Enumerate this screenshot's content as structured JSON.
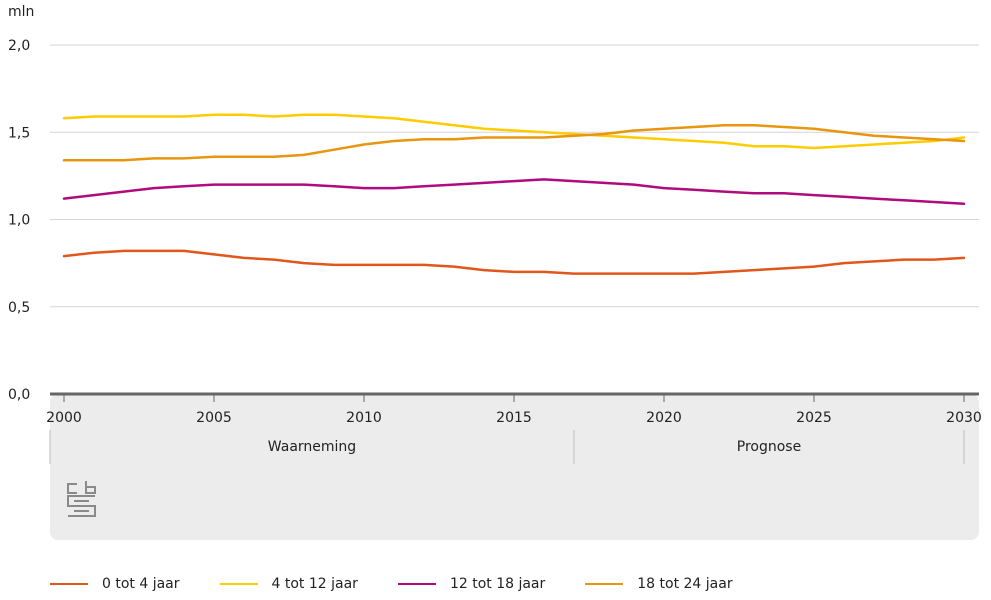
{
  "chart_data": {
    "type": "line",
    "unit": "mln",
    "ylim": [
      0,
      2
    ],
    "y_ticks": [
      "0,0",
      "0,5",
      "1,0",
      "1,5",
      "2,0"
    ],
    "x_ticks": [
      "2000",
      "2005",
      "2010",
      "2015",
      "2020",
      "2025",
      "2030"
    ],
    "xlim": [
      2000,
      2030
    ],
    "grid": true,
    "periods": [
      {
        "label": "Waarneming",
        "from": 2000,
        "to": 2017
      },
      {
        "label": "Prognose",
        "from": 2017,
        "to": 2030
      }
    ],
    "legend_position": "bottom",
    "x": [
      2000,
      2001,
      2002,
      2003,
      2004,
      2005,
      2006,
      2007,
      2008,
      2009,
      2010,
      2011,
      2012,
      2013,
      2014,
      2015,
      2016,
      2017,
      2018,
      2019,
      2020,
      2021,
      2022,
      2023,
      2024,
      2025,
      2026,
      2027,
      2028,
      2029,
      2030
    ],
    "series": [
      {
        "name": "0 tot 4 jaar",
        "color": "#e0561b",
        "values": [
          0.79,
          0.81,
          0.82,
          0.82,
          0.82,
          0.8,
          0.78,
          0.77,
          0.75,
          0.74,
          0.74,
          0.74,
          0.74,
          0.73,
          0.71,
          0.7,
          0.7,
          0.69,
          0.69,
          0.69,
          0.69,
          0.69,
          0.7,
          0.71,
          0.72,
          0.73,
          0.75,
          0.76,
          0.77,
          0.77,
          0.78
        ]
      },
      {
        "name": "4 tot 12 jaar",
        "color": "#ffcc00",
        "values": [
          1.58,
          1.59,
          1.59,
          1.59,
          1.59,
          1.6,
          1.6,
          1.59,
          1.6,
          1.6,
          1.59,
          1.58,
          1.56,
          1.54,
          1.52,
          1.51,
          1.5,
          1.49,
          1.48,
          1.47,
          1.46,
          1.45,
          1.44,
          1.42,
          1.42,
          1.41,
          1.42,
          1.43,
          1.44,
          1.45,
          1.47
        ]
      },
      {
        "name": "12 tot 18 jaar",
        "color": "#af0b7e",
        "values": [
          1.12,
          1.14,
          1.16,
          1.18,
          1.19,
          1.2,
          1.2,
          1.2,
          1.2,
          1.19,
          1.18,
          1.18,
          1.19,
          1.2,
          1.21,
          1.22,
          1.23,
          1.22,
          1.21,
          1.2,
          1.18,
          1.17,
          1.16,
          1.15,
          1.15,
          1.14,
          1.13,
          1.12,
          1.11,
          1.1,
          1.09
        ]
      },
      {
        "name": "18 tot 24 jaar",
        "color": "#e8950f",
        "values": [
          1.34,
          1.34,
          1.34,
          1.35,
          1.35,
          1.36,
          1.36,
          1.36,
          1.37,
          1.4,
          1.43,
          1.45,
          1.46,
          1.46,
          1.47,
          1.47,
          1.47,
          1.48,
          1.49,
          1.51,
          1.52,
          1.53,
          1.54,
          1.54,
          1.53,
          1.52,
          1.5,
          1.48,
          1.47,
          1.46,
          1.45
        ]
      }
    ]
  }
}
